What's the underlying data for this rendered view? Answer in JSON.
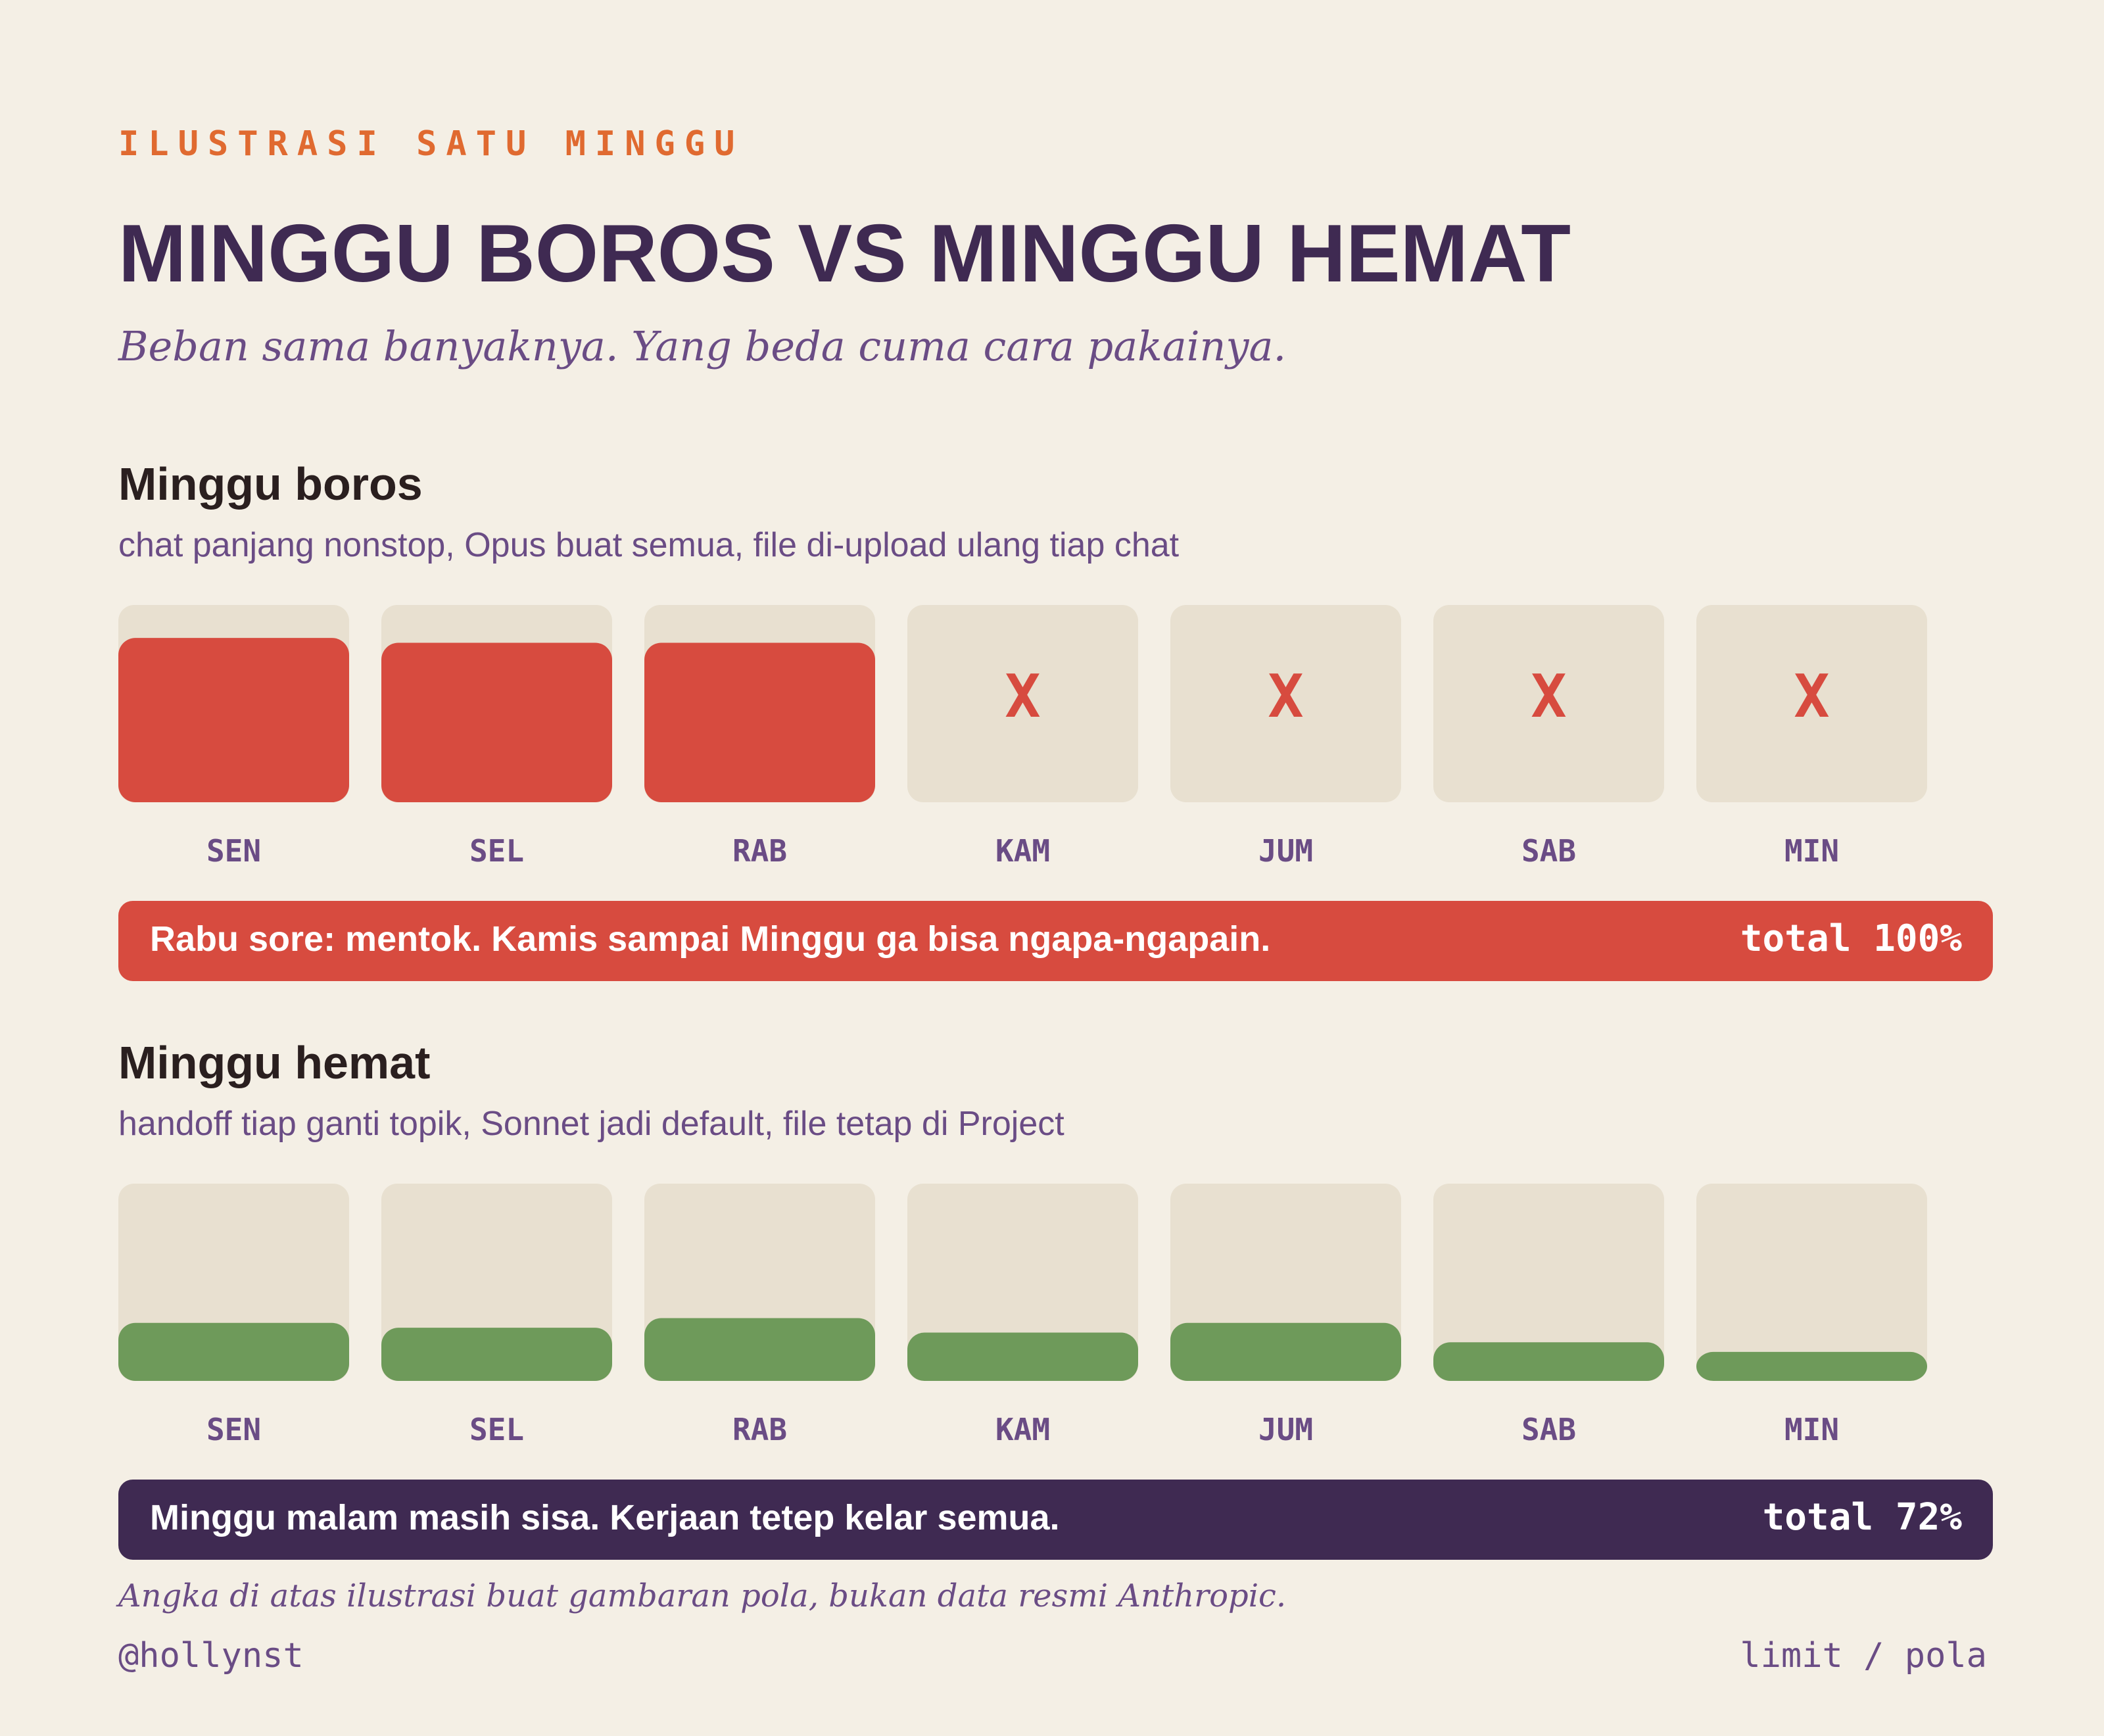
{
  "header": {
    "eyebrow": "ILUSTRASI SATU MINGGU",
    "title": "MINGGU BOROS VS MINGGU HEMAT",
    "subtitle": "Beban sama banyaknya. Yang beda cuma cara pakainya."
  },
  "sections": [
    {
      "type": "bar",
      "title": "Minggu boros",
      "description": "chat panjang nonstop, Opus buat semua, file di-upload ulang tiap chat",
      "categories": [
        "SEN",
        "SEL",
        "RAB",
        "KAM",
        "JUM",
        "SAB",
        "MIN"
      ],
      "values": [
        34,
        33,
        33,
        null,
        null,
        null,
        null
      ],
      "empty_mark": "X",
      "color": "#d74b3f",
      "banner": "Rabu sore: mentok. Kamis sampai Minggu ga bisa ngapa-ngapain.",
      "total": "total 100%",
      "banner_color": "#d74b3f"
    },
    {
      "type": "bar",
      "title": "Minggu hemat",
      "description": "handoff tiap ganti topik, Sonnet jadi default, file tetap di Project",
      "categories": [
        "SEN",
        "SEL",
        "RAB",
        "KAM",
        "JUM",
        "SAB",
        "MIN"
      ],
      "values": [
        12,
        11,
        13,
        10,
        12,
        8,
        6
      ],
      "empty_mark": "X",
      "color": "#6e9a5a",
      "banner": "Minggu malam masih sisa. Kerjaan tetep kelar semua.",
      "total": "total 72%",
      "banner_color": "#3f2a52"
    }
  ],
  "footer": {
    "note": "Angka di atas ilustrasi buat gambaran pola, bukan data resmi Anthropic.",
    "handle": "@hollynst",
    "tag": "limit / pola"
  }
}
